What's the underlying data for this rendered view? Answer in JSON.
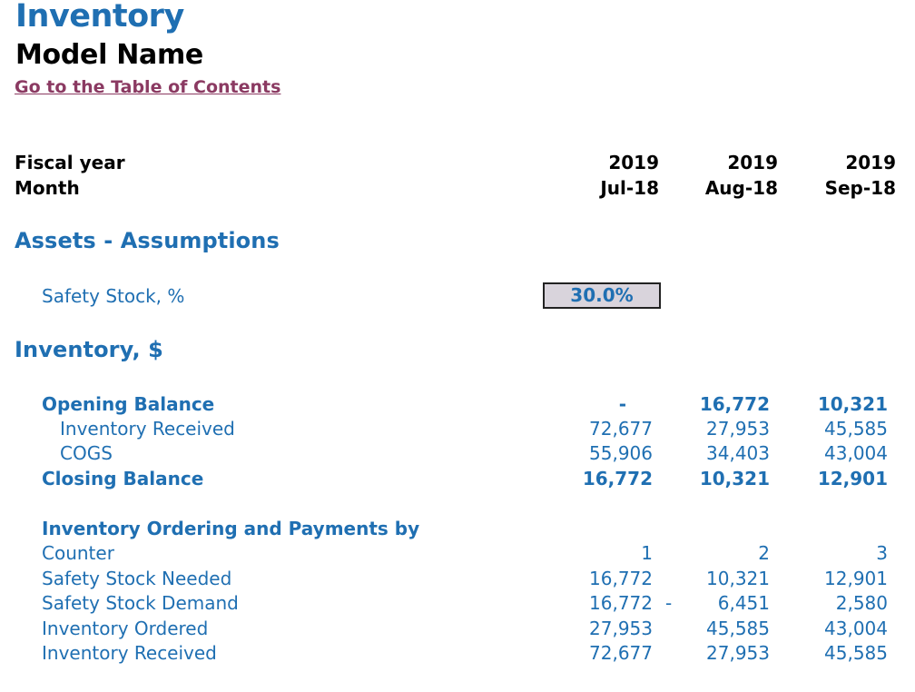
{
  "header": {
    "title": "Inventory",
    "model_name": "Model Name",
    "toc_link": "Go to the Table of Contents"
  },
  "timeline": {
    "fiscal_year_label": "Fiscal year",
    "month_label": "Month",
    "columns": [
      {
        "fiscal_year": "2019",
        "month": "Jul-18"
      },
      {
        "fiscal_year": "2019",
        "month": "Aug-18"
      },
      {
        "fiscal_year": "2019",
        "month": "Sep-18"
      }
    ]
  },
  "assumptions": {
    "section_title": "Assets - Assumptions",
    "safety_stock_label": "Safety Stock, %",
    "safety_stock_value": "30.0%"
  },
  "inventory": {
    "section_title": "Inventory, $",
    "opening_balance": {
      "label": "Opening Balance",
      "values": [
        "-",
        "16,772",
        "10,321"
      ]
    },
    "inventory_received": {
      "label": "Inventory Received",
      "values": [
        "72,677",
        "27,953",
        "45,585"
      ]
    },
    "cogs": {
      "label": "COGS",
      "values": [
        "55,906",
        "34,403",
        "43,004"
      ]
    },
    "closing_balance": {
      "label": "Closing Balance",
      "values": [
        "16,772",
        "10,321",
        "12,901"
      ]
    }
  },
  "ordering": {
    "section_title": "Inventory Ordering and Payments by",
    "counter": {
      "label": "Counter",
      "values": [
        "1",
        "2",
        "3"
      ]
    },
    "safety_stock_needed": {
      "label": "Safety Stock Needed",
      "values": [
        "16,772",
        "10,321",
        "12,901"
      ]
    },
    "safety_stock_demand": {
      "label": "Safety Stock Demand",
      "values": [
        "16,772",
        "6,451",
        "2,580"
      ],
      "sign_marker": "-"
    },
    "inventory_ordered": {
      "label": "Inventory Ordered",
      "values": [
        "27,953",
        "45,585",
        "43,004"
      ]
    },
    "inventory_received": {
      "label": "Inventory Received",
      "values": [
        "72,677",
        "27,953",
        "45,585"
      ]
    }
  }
}
